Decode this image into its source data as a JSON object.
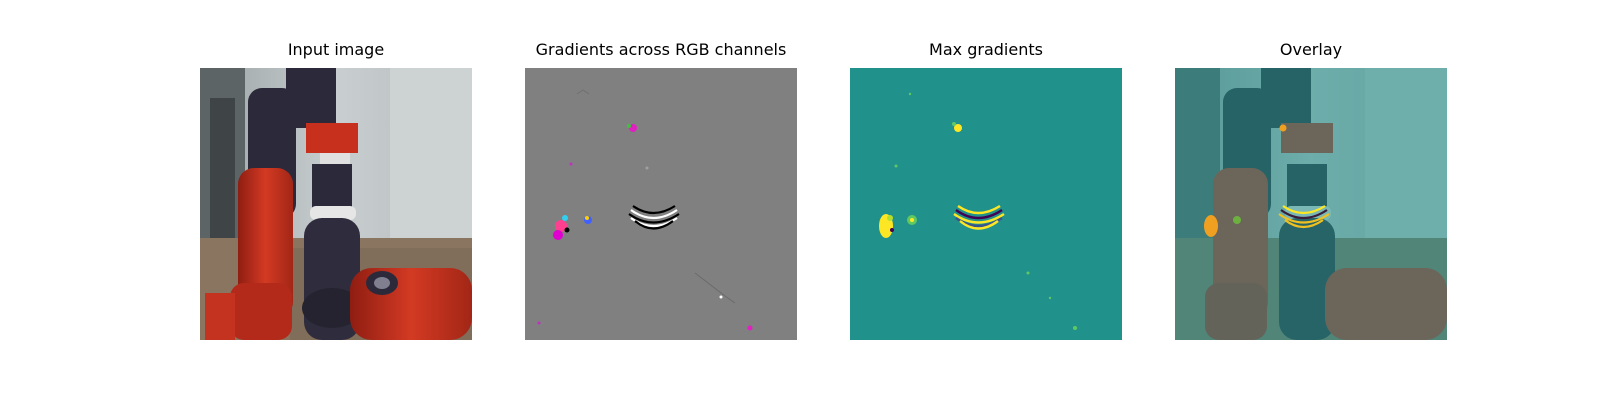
{
  "panels": [
    {
      "title": "Input image"
    },
    {
      "title": "Gradients across RGB channels"
    },
    {
      "title": "Max gradients"
    },
    {
      "title": "Overlay"
    }
  ],
  "colors": {
    "background": "#ffffff",
    "gradient_gray": "#808080",
    "viridis_teal": "#21918c",
    "viridis_yellow": "#fde725",
    "viridis_green": "#5ec962",
    "robot_red": "#c8301e",
    "robot_dark": "#2c2a3a"
  }
}
